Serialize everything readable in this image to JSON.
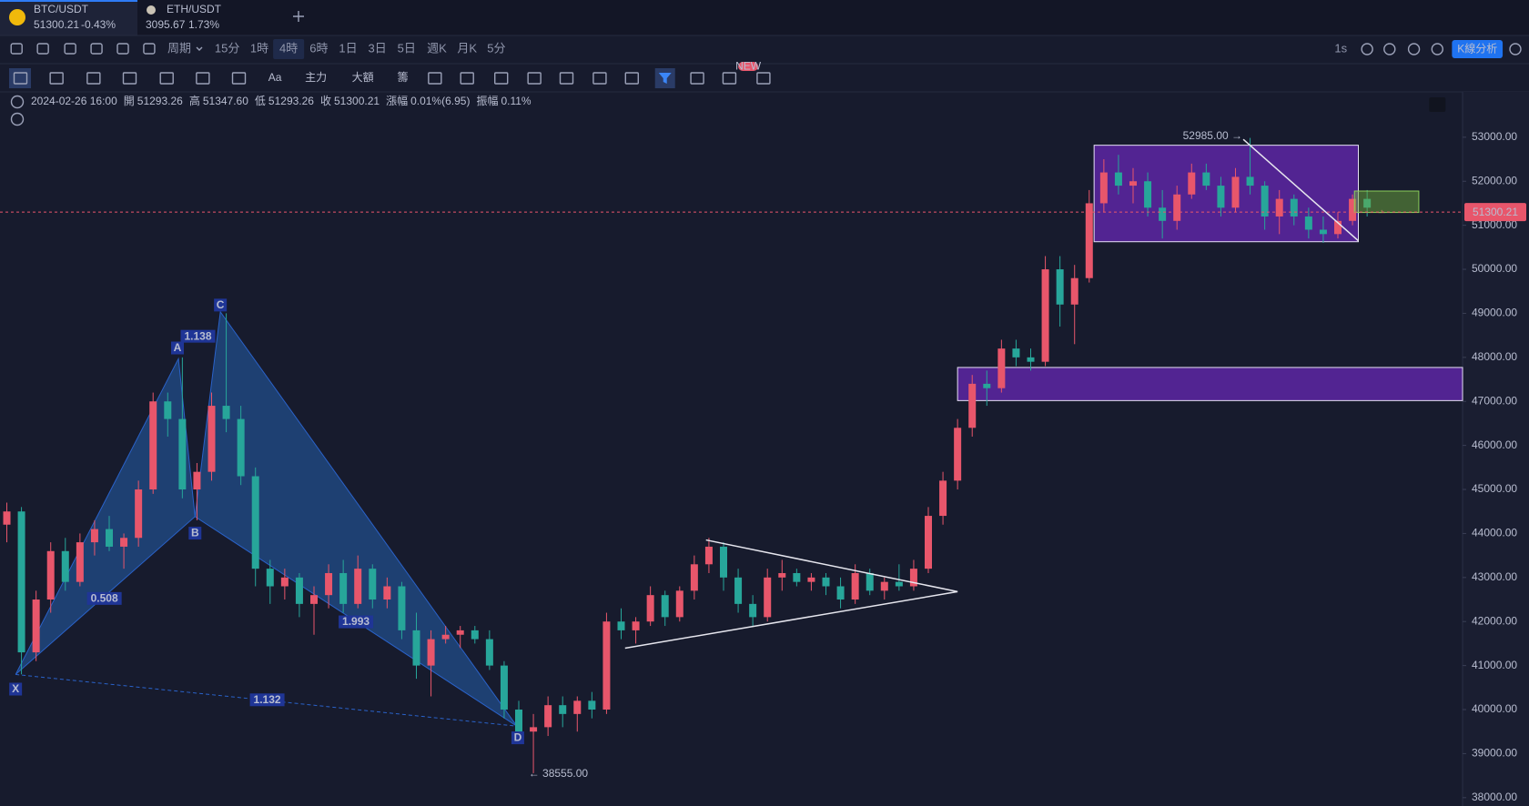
{
  "tabs": [
    {
      "symbol": "BTC/USDT",
      "price": "51300.21",
      "change": "-0.43%"
    },
    {
      "symbol": "ETH/USDT",
      "price": "3095.67",
      "change": "1.73%"
    }
  ],
  "toolbar": {
    "period": "周期",
    "intervals": [
      "15分",
      "1時",
      "4時",
      "6時",
      "1日",
      "3日",
      "5日",
      "週K",
      "月K",
      "5分"
    ],
    "active_index": 2,
    "speed": "1s",
    "analysis": "K線分析"
  },
  "drawing_tools": {
    "text": "Aa",
    "main": "主力",
    "large": "大額",
    "chips": "籌",
    "badge": "NEW"
  },
  "chart_data": {
    "type": "candlestick",
    "info": {
      "date": "2024-02-26 16:00",
      "fields": [
        {
          "label": "開",
          "value": "51293.26"
        },
        {
          "label": "高",
          "value": "51347.60"
        },
        {
          "label": "低",
          "value": "51293.26"
        },
        {
          "label": "收",
          "value": "51300.21"
        },
        {
          "label": "漲幅",
          "value": "0.01%(6.95)"
        },
        {
          "label": "振幅",
          "value": "0.11%"
        }
      ]
    },
    "up_color": "#e8566b",
    "down_color": "#27a69a",
    "candles": [
      [
        44200,
        44700,
        43800,
        44500
      ],
      [
        44500,
        44600,
        40800,
        41300
      ],
      [
        41300,
        42700,
        41100,
        42500
      ],
      [
        42500,
        43800,
        42200,
        43600
      ],
      [
        43600,
        43900,
        42700,
        42900
      ],
      [
        42900,
        44000,
        42800,
        43800
      ],
      [
        43800,
        44300,
        43500,
        44100
      ],
      [
        44100,
        44400,
        43600,
        43700
      ],
      [
        43700,
        44000,
        43200,
        43900
      ],
      [
        43900,
        45200,
        43700,
        45000
      ],
      [
        45000,
        47200,
        44900,
        47000
      ],
      [
        47000,
        47200,
        46200,
        46600
      ],
      [
        46600,
        48000,
        44800,
        45000
      ],
      [
        45000,
        45600,
        44300,
        45400
      ],
      [
        45400,
        47200,
        45200,
        46900
      ],
      [
        46900,
        49000,
        46300,
        46600
      ],
      [
        46600,
        46900,
        45100,
        45300
      ],
      [
        45300,
        45500,
        42800,
        43200
      ],
      [
        43200,
        43400,
        42400,
        42800
      ],
      [
        42800,
        43200,
        42500,
        43000
      ],
      [
        43000,
        43100,
        42100,
        42400
      ],
      [
        42400,
        42800,
        41700,
        42600
      ],
      [
        42600,
        43300,
        42300,
        43100
      ],
      [
        43100,
        43400,
        42200,
        42400
      ],
      [
        42400,
        43500,
        42300,
        43200
      ],
      [
        43200,
        43300,
        42300,
        42500
      ],
      [
        42500,
        43000,
        42300,
        42800
      ],
      [
        42800,
        42900,
        41600,
        41800
      ],
      [
        41800,
        42200,
        40700,
        41000
      ],
      [
        41000,
        41800,
        40300,
        41600
      ],
      [
        41600,
        41900,
        41500,
        41700
      ],
      [
        41700,
        41900,
        41400,
        41800
      ],
      [
        41800,
        41900,
        41500,
        41600
      ],
      [
        41600,
        41800,
        40900,
        41000
      ],
      [
        41000,
        41100,
        39800,
        40000
      ],
      [
        40000,
        40200,
        39300,
        39500
      ],
      [
        39500,
        39900,
        38555,
        39600
      ],
      [
        39600,
        40300,
        39400,
        40100
      ],
      [
        40100,
        40300,
        39600,
        39900
      ],
      [
        39900,
        40300,
        39500,
        40200
      ],
      [
        40200,
        40400,
        39800,
        40000
      ],
      [
        40000,
        42200,
        39900,
        42000
      ],
      [
        42000,
        42300,
        41600,
        41800
      ],
      [
        41800,
        42100,
        41500,
        42000
      ],
      [
        42000,
        42800,
        41900,
        42600
      ],
      [
        42600,
        42700,
        41900,
        42100
      ],
      [
        42100,
        42800,
        42000,
        42700
      ],
      [
        42700,
        43500,
        42500,
        43300
      ],
      [
        43300,
        43900,
        43100,
        43700
      ],
      [
        43700,
        43800,
        42700,
        43000
      ],
      [
        43000,
        43200,
        42200,
        42400
      ],
      [
        42400,
        42600,
        41900,
        42100
      ],
      [
        42100,
        43200,
        42000,
        43000
      ],
      [
        43000,
        43400,
        42700,
        43100
      ],
      [
        43100,
        43200,
        42800,
        42900
      ],
      [
        42900,
        43100,
        42700,
        43000
      ],
      [
        43000,
        43100,
        42600,
        42800
      ],
      [
        42800,
        43000,
        42300,
        42500
      ],
      [
        42500,
        43300,
        42400,
        43100
      ],
      [
        43100,
        43200,
        42600,
        42700
      ],
      [
        42700,
        43000,
        42500,
        42900
      ],
      [
        42900,
        43300,
        42700,
        42800
      ],
      [
        42800,
        43400,
        42700,
        43200
      ],
      [
        43200,
        44600,
        43100,
        44400
      ],
      [
        44400,
        45400,
        44200,
        45200
      ],
      [
        45200,
        46600,
        45000,
        46400
      ],
      [
        46400,
        47600,
        46200,
        47400
      ],
      [
        47400,
        47700,
        46900,
        47300
      ],
      [
        47300,
        48400,
        47200,
        48200
      ],
      [
        48200,
        48400,
        47800,
        48000
      ],
      [
        48000,
        48200,
        47700,
        47900
      ],
      [
        47900,
        50300,
        47800,
        50000
      ],
      [
        50000,
        50300,
        48700,
        49200
      ],
      [
        49200,
        50100,
        48300,
        49800
      ],
      [
        49800,
        51800,
        49700,
        51500
      ],
      [
        51500,
        52500,
        51300,
        52200
      ],
      [
        52200,
        52600,
        51700,
        51900
      ],
      [
        51900,
        52300,
        51500,
        52000
      ],
      [
        52000,
        52200,
        51200,
        51400
      ],
      [
        51400,
        51800,
        50700,
        51100
      ],
      [
        51100,
        51900,
        50900,
        51700
      ],
      [
        51700,
        52400,
        51600,
        52200
      ],
      [
        52200,
        52400,
        51800,
        51900
      ],
      [
        51900,
        52100,
        51200,
        51400
      ],
      [
        51400,
        52300,
        51300,
        52100
      ],
      [
        52100,
        52985,
        51700,
        51900
      ],
      [
        51900,
        52000,
        50900,
        51200
      ],
      [
        51200,
        51800,
        50800,
        51600
      ],
      [
        51600,
        51700,
        51000,
        51200
      ],
      [
        51200,
        51400,
        50700,
        50900
      ],
      [
        50900,
        51200,
        50600,
        50800
      ],
      [
        50800,
        51300,
        50700,
        51100
      ],
      [
        51100,
        51700,
        51000,
        51600
      ],
      [
        51600,
        51800,
        51200,
        51400
      ],
      [
        51293.26,
        51347.6,
        51293.26,
        51300.21
      ]
    ],
    "ylim": [
      37810,
      54030
    ],
    "yticks": [
      {
        "value": 38000,
        "label": "38000.00"
      },
      {
        "value": 39000,
        "label": "39000.00"
      },
      {
        "value": 40000,
        "label": "40000.00"
      },
      {
        "value": 41000,
        "label": "41000.00"
      },
      {
        "value": 42000,
        "label": "42000.00"
      },
      {
        "value": 43000,
        "label": "43000.00"
      },
      {
        "value": 44000,
        "label": "44000.00"
      },
      {
        "value": 45000,
        "label": "45000.00"
      },
      {
        "value": 46000,
        "label": "46000.00"
      },
      {
        "value": 47000,
        "label": "47000.00"
      },
      {
        "value": 48000,
        "label": "48000.00"
      },
      {
        "value": 49000,
        "label": "49000.00"
      },
      {
        "value": 50000,
        "label": "50000.00"
      },
      {
        "value": 51000,
        "label": "51000.00"
      },
      {
        "value": 52000,
        "label": "52000.00"
      },
      {
        "value": 53000,
        "label": "53000.00"
      }
    ],
    "grid": false,
    "last_price": {
      "value": 51300.21,
      "label": "51300.21"
    },
    "pattern": {
      "points": [
        "X",
        "A",
        "B",
        "C",
        "D"
      ],
      "ratios": [
        "1.138",
        "0.508",
        "1.993",
        "1.132"
      ]
    },
    "high_label": "52985.00 →",
    "low_label": "← 38555.00"
  }
}
